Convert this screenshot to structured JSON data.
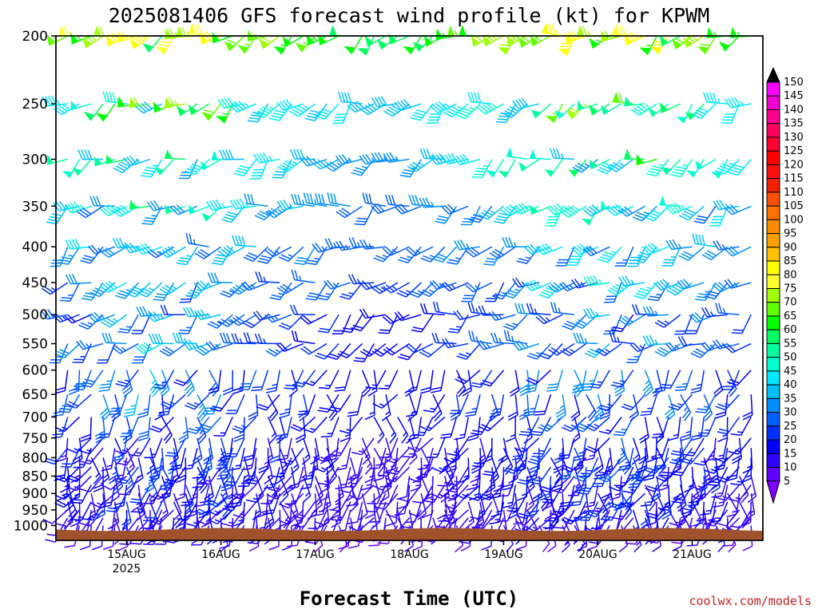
{
  "chart_data": {
    "type": "wind-barb-profile",
    "title": "2025081406 GFS forecast wind profile (kt) for KPWM",
    "xlabel": "Forecast Time (UTC)",
    "credit": "coolwx.com/models",
    "y_axis": {
      "reversed": true,
      "scale": "log-pressure",
      "ylim": [
        200,
        1050
      ],
      "ticks": [
        200,
        250,
        300,
        350,
        400,
        450,
        500,
        550,
        600,
        650,
        700,
        750,
        800,
        850,
        900,
        950,
        1000
      ]
    },
    "x_axis": {
      "ticks": [
        {
          "label": "15AUG",
          "sublabel": "2025",
          "hour": 18
        },
        {
          "label": "16AUG",
          "sublabel": "",
          "hour": 42
        },
        {
          "label": "17AUG",
          "sublabel": "",
          "hour": 66
        },
        {
          "label": "18AUG",
          "sublabel": "",
          "hour": 90
        },
        {
          "label": "19AUG",
          "sublabel": "",
          "hour": 114
        },
        {
          "label": "20AUG",
          "sublabel": "",
          "hour": 138
        },
        {
          "label": "21AUG",
          "sublabel": "",
          "hour": 162
        }
      ],
      "xlim": [
        0,
        180
      ],
      "time_step_hours": 3
    },
    "levels_hpa": [
      1000,
      975,
      950,
      925,
      900,
      875,
      850,
      825,
      800,
      775,
      750,
      700,
      650,
      600,
      550,
      500,
      450,
      400,
      350,
      300,
      250,
      200
    ],
    "colorbar": {
      "labels": [
        "150",
        "145",
        "140",
        "135",
        "130",
        "125",
        "120",
        "115",
        "110",
        "105",
        "100",
        "95",
        "90",
        "85",
        "80",
        "75",
        "70",
        "65",
        "60",
        "55",
        "50",
        "45",
        "40",
        "35",
        "30",
        "25",
        "20",
        "15",
        "10",
        "5"
      ],
      "colors": [
        "#ff00ff",
        "#f000d0",
        "#ff0090",
        "#ff0060",
        "#ff0030",
        "#ff0000",
        "#ff1010",
        "#f02000",
        "#ff5000",
        "#ff7000",
        "#ff8c00",
        "#ffa000",
        "#ffc000",
        "#ffff00",
        "#ffff30",
        "#a0ff00",
        "#60ff00",
        "#00ff00",
        "#00ff60",
        "#00ffa0",
        "#00ffd0",
        "#00e8ff",
        "#00c0ff",
        "#0090ff",
        "#0060ff",
        "#0030ff",
        "#0000ff",
        "#3000ff",
        "#6000ff",
        "#8000ff"
      ]
    },
    "ground_surface_hpa": 1013,
    "wind_speed_summary_kt": {
      "200": [
        40,
        95
      ],
      "250": [
        15,
        80
      ],
      "300": [
        15,
        70
      ],
      "350": [
        10,
        65
      ],
      "400": [
        10,
        55
      ],
      "450": [
        10,
        50
      ],
      "500": [
        5,
        45
      ],
      "550": [
        5,
        45
      ],
      "600": [
        5,
        40
      ],
      "650": [
        5,
        40
      ],
      "700": [
        5,
        35
      ],
      "750": [
        5,
        30
      ],
      "800": [
        5,
        30
      ],
      "850": [
        5,
        25
      ],
      "900": [
        5,
        25
      ],
      "950": [
        5,
        20
      ],
      "1000": [
        5,
        15
      ]
    }
  }
}
